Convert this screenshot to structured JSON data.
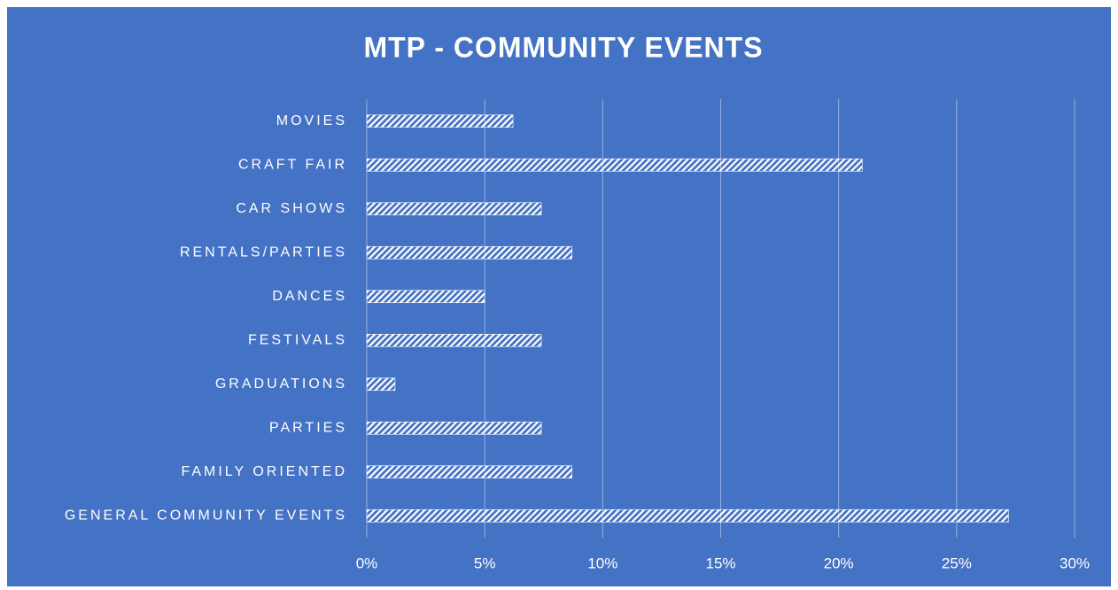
{
  "chart_data": {
    "type": "bar",
    "orientation": "horizontal",
    "title": "MTP - COMMUNITY EVENTS",
    "categories": [
      "MOVIES",
      "CRAFT FAIR",
      "CAR SHOWS",
      "RENTALS/PARTIES",
      "DANCES",
      "FESTIVALS",
      "GRADUATIONS",
      "PARTIES",
      "FAMILY ORIENTED",
      "GENERAL COMMUNITY EVENTS"
    ],
    "values": [
      6.2,
      21.0,
      7.4,
      8.7,
      5.0,
      7.4,
      1.2,
      7.4,
      8.7,
      27.2
    ],
    "color": "#ffffff",
    "xlim": [
      0,
      30
    ],
    "xticks": [
      {
        "value": 0,
        "label": "0%"
      },
      {
        "value": 5,
        "label": "5%"
      },
      {
        "value": 10,
        "label": "10%"
      },
      {
        "value": 15,
        "label": "15%"
      },
      {
        "value": 20,
        "label": "20%"
      },
      {
        "value": 25,
        "label": "25%"
      },
      {
        "value": 30,
        "label": "30%"
      }
    ],
    "grid": true
  }
}
